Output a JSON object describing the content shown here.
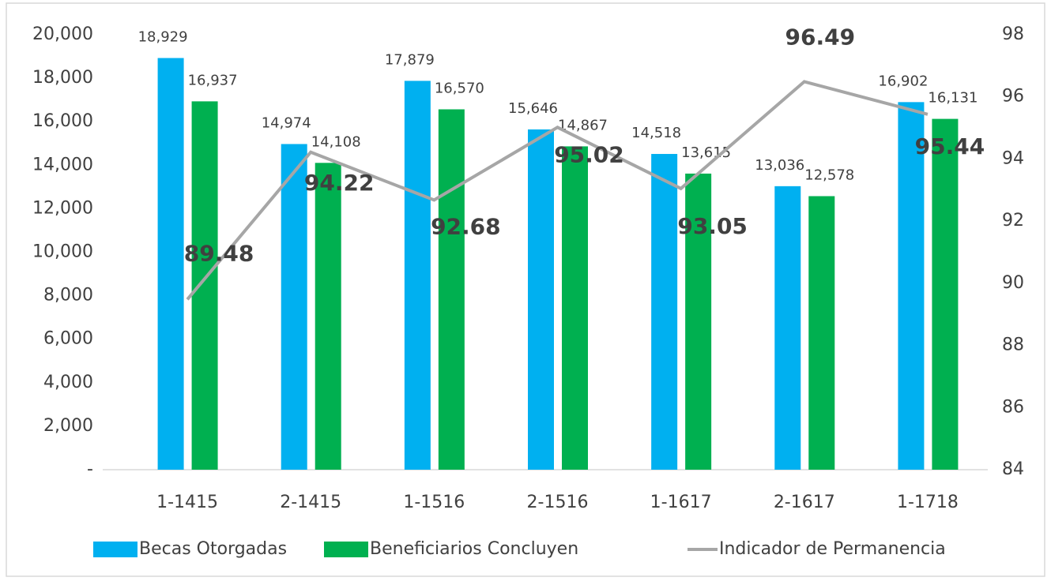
{
  "chart_data": {
    "type": "bar",
    "categories": [
      "1-1415",
      "2-1415",
      "1-1516",
      "2-1516",
      "1-1617",
      "2-1617",
      "1-1718"
    ],
    "series": [
      {
        "name": "Becas Otorgadas",
        "color": "#00b0f0",
        "values": [
          18929,
          14974,
          17879,
          15646,
          14518,
          13036,
          16902
        ],
        "value_labels": [
          "18,929",
          "14,974",
          "17,879",
          "15,646",
          "14,518",
          "13,036",
          "16,902"
        ]
      },
      {
        "name": "Beneficiarios Concluyen",
        "color": "#00b050",
        "values": [
          16937,
          14108,
          16570,
          14867,
          13615,
          12578,
          16131
        ],
        "value_labels": [
          "16,937",
          "14,108",
          "16,570",
          "14,867",
          "13,615",
          "12,578",
          "16,131"
        ]
      },
      {
        "name": "Indicador de Permanencia",
        "type": "line",
        "axis": "y2",
        "color": "#a6a6a6",
        "values": [
          89.48,
          94.22,
          92.68,
          95.02,
          93.05,
          96.49,
          95.44
        ]
      }
    ],
    "ylim": [
      0,
      20000
    ],
    "yticks": [
      {
        "value": 0,
        "label": "-"
      },
      {
        "value": 2000,
        "label": "2,000"
      },
      {
        "value": 4000,
        "label": "4,000"
      },
      {
        "value": 6000,
        "label": "6,000"
      },
      {
        "value": 8000,
        "label": "8,000"
      },
      {
        "value": 10000,
        "label": "10,000"
      },
      {
        "value": 12000,
        "label": "12,000"
      },
      {
        "value": 14000,
        "label": "14,000"
      },
      {
        "value": 16000,
        "label": "16,000"
      },
      {
        "value": 18000,
        "label": "18,000"
      },
      {
        "value": 20000,
        "label": "20,000"
      }
    ],
    "y2lim": [
      84,
      98
    ],
    "y2ticks": [
      84,
      86,
      88,
      90,
      92,
      94,
      96,
      98
    ],
    "legend": "bottom"
  }
}
